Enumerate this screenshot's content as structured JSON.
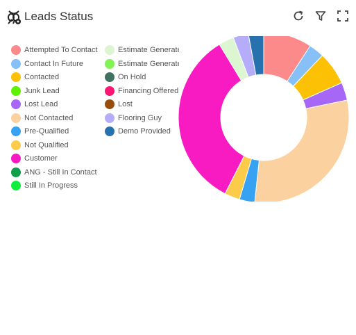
{
  "header": {
    "title": "Leads Status",
    "icons": [
      "bee-logo-icon",
      "refresh-icon",
      "filter-icon",
      "fullscreen-icon"
    ]
  },
  "chart_data": {
    "type": "pie",
    "variant": "donut",
    "legend_placement": "left",
    "categories": [
      "Attempted To Contact",
      "Contact In Future",
      "Contacted",
      "Junk Lead",
      "Lost Lead",
      "Not Contacted",
      "Pre-Qualified",
      "Not Qualified",
      "Customer",
      "ANG - Still In Contact",
      "Still In Progress",
      "Estimate Generated",
      "Estimate Generated",
      "On Hold",
      "Financing Offered",
      "Lost",
      "Flooring Guy",
      "Demo Provided"
    ],
    "colors": [
      "#fd8a8a",
      "#86c0f7",
      "#fcc104",
      "#5ef100",
      "#a667f7",
      "#fcd1a0",
      "#37a1f2",
      "#fdcb4a",
      "#f81bc2",
      "#109e48",
      "#10ee3d",
      "#dbf6d0",
      "#81f454",
      "#417160",
      "#fb1773",
      "#974c0c",
      "#b5adfa",
      "#2772ae"
    ],
    "values": [
      9.5,
      3,
      6.5,
      0,
      3.5,
      31,
      3,
      3,
      35,
      0,
      0,
      3,
      0,
      0,
      0,
      0,
      3,
      3
    ]
  },
  "legend_items": [
    "Attempted To Contact",
    "Contact In Future",
    "Contacted",
    "Junk Lead",
    "Lost Lead",
    "Not Contacted",
    "Pre-Qualified",
    "Not Qualified",
    "Customer",
    "ANG - Still In Contact",
    "Still In Progress",
    "Estimate Generated",
    "Estimate Generated",
    "On Hold",
    "Financing Offered",
    "Lost",
    "Flooring Guy",
    "Demo Provided"
  ]
}
